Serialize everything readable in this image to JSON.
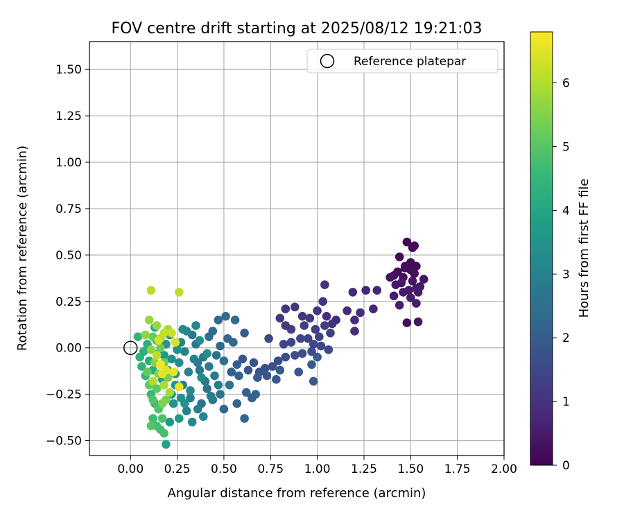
{
  "chart_data": {
    "type": "scatter",
    "title": "FOV centre drift starting at 2025/08/12 19:21:03",
    "xlabel": "Angular distance from reference (arcmin)",
    "ylabel": "Rotation from reference (arcmin)",
    "xlim": [
      -0.22,
      2.0
    ],
    "ylim": [
      -0.58,
      1.65
    ],
    "xticks": [
      0.0,
      0.25,
      0.5,
      0.75,
      1.0,
      1.25,
      1.5,
      1.75,
      2.0
    ],
    "xtick_labels": [
      "0.00",
      "0.25",
      "0.50",
      "0.75",
      "1.00",
      "1.25",
      "1.50",
      "1.75",
      "2.00"
    ],
    "yticks": [
      -0.5,
      -0.25,
      0.0,
      0.25,
      0.5,
      0.75,
      1.0,
      1.25,
      1.5
    ],
    "ytick_labels": [
      "−0.50",
      "−0.25",
      "0.00",
      "0.25",
      "0.50",
      "0.75",
      "1.00",
      "1.25",
      "1.50"
    ],
    "grid": true,
    "legend": {
      "placement": "top-right",
      "entries": [
        {
          "label": "Reference platepar",
          "marker": "open-circle",
          "x": 0.0,
          "y": 0.0
        }
      ]
    },
    "colorbar": {
      "label": "Hours from first FF file",
      "colormap": "viridis",
      "range": [
        0,
        6.8
      ],
      "ticks": [
        0,
        1,
        2,
        3,
        4,
        5,
        6
      ],
      "tick_labels": [
        "0",
        "1",
        "2",
        "3",
        "4",
        "5",
        "6"
      ],
      "colormap_stops": [
        "#440154",
        "#482878",
        "#3e4989",
        "#31688e",
        "#26828e",
        "#1f9e89",
        "#35b779",
        "#6ece58",
        "#b5de2b",
        "#fde725"
      ]
    },
    "points_cmap_value": "hours",
    "points": [
      {
        "x": 1.48,
        "y": 0.57,
        "h": 0.05
      },
      {
        "x": 1.51,
        "y": 0.54,
        "h": 0.08
      },
      {
        "x": 1.52,
        "y": 0.55,
        "h": 0.1
      },
      {
        "x": 1.44,
        "y": 0.49,
        "h": 0.12
      },
      {
        "x": 1.5,
        "y": 0.46,
        "h": 0.15
      },
      {
        "x": 1.53,
        "y": 0.44,
        "h": 0.18
      },
      {
        "x": 1.47,
        "y": 0.43,
        "h": 0.2
      },
      {
        "x": 1.43,
        "y": 0.41,
        "h": 0.22
      },
      {
        "x": 1.41,
        "y": 0.39,
        "h": 0.25
      },
      {
        "x": 1.52,
        "y": 0.4,
        "h": 0.27
      },
      {
        "x": 1.46,
        "y": 0.38,
        "h": 0.3
      },
      {
        "x": 1.39,
        "y": 0.38,
        "h": 0.33
      },
      {
        "x": 1.51,
        "y": 0.36,
        "h": 0.35
      },
      {
        "x": 1.57,
        "y": 0.37,
        "h": 0.37
      },
      {
        "x": 1.45,
        "y": 0.35,
        "h": 0.4
      },
      {
        "x": 1.42,
        "y": 0.34,
        "h": 0.42
      },
      {
        "x": 1.53,
        "y": 0.32,
        "h": 0.44
      },
      {
        "x": 1.49,
        "y": 0.31,
        "h": 0.46
      },
      {
        "x": 1.46,
        "y": 0.3,
        "h": 0.48
      },
      {
        "x": 1.54,
        "y": 0.3,
        "h": 0.5
      },
      {
        "x": 1.41,
        "y": 0.28,
        "h": 0.52
      },
      {
        "x": 1.5,
        "y": 0.27,
        "h": 0.54
      },
      {
        "x": 1.53,
        "y": 0.24,
        "h": 0.56
      },
      {
        "x": 1.44,
        "y": 0.23,
        "h": 0.58
      },
      {
        "x": 1.48,
        "y": 0.135,
        "h": 0.3
      },
      {
        "x": 1.54,
        "y": 0.14,
        "h": 0.35
      },
      {
        "x": 1.55,
        "y": 0.33,
        "h": 0.4
      },
      {
        "x": 1.47,
        "y": 0.44,
        "h": 0.25
      },
      {
        "x": 1.5,
        "y": 0.42,
        "h": 0.2
      },
      {
        "x": 1.32,
        "y": 0.31,
        "h": 0.7
      },
      {
        "x": 1.26,
        "y": 0.31,
        "h": 0.72
      },
      {
        "x": 1.19,
        "y": 0.3,
        "h": 0.75
      },
      {
        "x": 1.3,
        "y": 0.21,
        "h": 0.78
      },
      {
        "x": 1.23,
        "y": 0.19,
        "h": 0.8
      },
      {
        "x": 1.16,
        "y": 0.2,
        "h": 0.82
      },
      {
        "x": 1.2,
        "y": 0.15,
        "h": 0.85
      },
      {
        "x": 1.1,
        "y": 0.15,
        "h": 0.87
      },
      {
        "x": 1.05,
        "y": 0.17,
        "h": 0.9
      },
      {
        "x": 1.2,
        "y": 0.09,
        "h": 0.92
      },
      {
        "x": 1.08,
        "y": 0.13,
        "h": 0.95
      },
      {
        "x": 1.04,
        "y": 0.34,
        "h": 0.97
      },
      {
        "x": 1.03,
        "y": 0.25,
        "h": 1.0
      },
      {
        "x": 1.0,
        "y": 0.2,
        "h": 1.02
      },
      {
        "x": 0.96,
        "y": 0.16,
        "h": 1.05
      },
      {
        "x": 0.92,
        "y": 0.17,
        "h": 1.07
      },
      {
        "x": 0.88,
        "y": 0.22,
        "h": 1.1
      },
      {
        "x": 0.83,
        "y": 0.21,
        "h": 1.12
      },
      {
        "x": 0.8,
        "y": 0.16,
        "h": 1.15
      },
      {
        "x": 0.83,
        "y": 0.12,
        "h": 1.17
      },
      {
        "x": 0.86,
        "y": 0.1,
        "h": 1.2
      },
      {
        "x": 0.93,
        "y": 0.12,
        "h": 1.22
      },
      {
        "x": 0.99,
        "y": 0.1,
        "h": 1.25
      },
      {
        "x": 1.04,
        "y": 0.12,
        "h": 1.27
      },
      {
        "x": 1.07,
        "y": 0.08,
        "h": 1.3
      },
      {
        "x": 1.01,
        "y": 0.06,
        "h": 1.32
      },
      {
        "x": 0.95,
        "y": 0.05,
        "h": 1.35
      },
      {
        "x": 0.91,
        "y": 0.05,
        "h": 1.37
      },
      {
        "x": 0.86,
        "y": 0.03,
        "h": 1.4
      },
      {
        "x": 0.82,
        "y": 0.02,
        "h": 1.42
      },
      {
        "x": 0.74,
        "y": 0.05,
        "h": 1.45
      },
      {
        "x": 0.98,
        "y": 0.02,
        "h": 1.47
      },
      {
        "x": 1.02,
        "y": 0.01,
        "h": 1.5
      },
      {
        "x": 1.06,
        "y": -0.01,
        "h": 1.52
      },
      {
        "x": 0.97,
        "y": -0.02,
        "h": 1.55
      },
      {
        "x": 0.92,
        "y": -0.03,
        "h": 1.57
      },
      {
        "x": 0.88,
        "y": -0.04,
        "h": 1.6
      },
      {
        "x": 0.83,
        "y": -0.05,
        "h": 1.62
      },
      {
        "x": 0.79,
        "y": -0.07,
        "h": 1.65
      },
      {
        "x": 0.76,
        "y": -0.1,
        "h": 1.67
      },
      {
        "x": 0.72,
        "y": -0.11,
        "h": 1.7
      },
      {
        "x": 0.66,
        "y": -0.08,
        "h": 1.72
      },
      {
        "x": 0.69,
        "y": -0.13,
        "h": 1.75
      },
      {
        "x": 0.63,
        "y": -0.12,
        "h": 1.77
      },
      {
        "x": 0.6,
        "y": -0.06,
        "h": 1.8
      },
      {
        "x": 0.9,
        "y": -0.13,
        "h": 1.82
      },
      {
        "x": 0.8,
        "y": -0.12,
        "h": 1.85
      },
      {
        "x": 0.73,
        "y": -0.15,
        "h": 1.87
      },
      {
        "x": 0.78,
        "y": -0.17,
        "h": 1.9
      },
      {
        "x": 0.98,
        "y": -0.18,
        "h": 1.92
      },
      {
        "x": 0.68,
        "y": -0.16,
        "h": 1.95
      },
      {
        "x": 0.97,
        "y": -0.09,
        "h": 1.97
      },
      {
        "x": 1.0,
        "y": -0.05,
        "h": 2.0
      },
      {
        "x": 0.61,
        "y": 0.08,
        "h": 2.02
      },
      {
        "x": 0.57,
        "y": -0.09,
        "h": 2.05
      },
      {
        "x": 0.54,
        "y": -0.13,
        "h": 2.07
      },
      {
        "x": 0.58,
        "y": -0.15,
        "h": 2.1
      },
      {
        "x": 0.62,
        "y": -0.24,
        "h": 2.12
      },
      {
        "x": 0.65,
        "y": -0.27,
        "h": 2.15
      },
      {
        "x": 0.67,
        "y": -0.25,
        "h": 2.17
      },
      {
        "x": 0.57,
        "y": -0.3,
        "h": 2.2
      },
      {
        "x": 0.61,
        "y": -0.38,
        "h": 2.22
      },
      {
        "x": 0.5,
        "y": -0.33,
        "h": 2.25
      },
      {
        "x": 0.55,
        "y": 0.03,
        "h": 2.27
      },
      {
        "x": 0.52,
        "y": 0.05,
        "h": 2.3
      },
      {
        "x": 0.48,
        "y": 0.01,
        "h": 2.32
      },
      {
        "x": 0.47,
        "y": 0.15,
        "h": 2.35
      },
      {
        "x": 0.51,
        "y": 0.17,
        "h": 2.37
      },
      {
        "x": 0.56,
        "y": 0.15,
        "h": 2.4
      },
      {
        "x": 0.44,
        "y": 0.09,
        "h": 2.42
      },
      {
        "x": 0.42,
        "y": 0.06,
        "h": 2.45
      },
      {
        "x": 0.46,
        "y": -0.04,
        "h": 2.47
      },
      {
        "x": 0.5,
        "y": -0.07,
        "h": 2.5
      },
      {
        "x": 0.53,
        "y": -0.2,
        "h": 2.52
      },
      {
        "x": 0.48,
        "y": -0.25,
        "h": 2.55
      },
      {
        "x": 0.44,
        "y": -0.28,
        "h": 2.57
      },
      {
        "x": 0.41,
        "y": -0.22,
        "h": 2.6
      },
      {
        "x": 0.38,
        "y": -0.3,
        "h": 2.62
      },
      {
        "x": 0.4,
        "y": -0.18,
        "h": 2.65
      },
      {
        "x": 0.37,
        "y": -0.12,
        "h": 2.67
      },
      {
        "x": 0.39,
        "y": -0.05,
        "h": 2.7
      },
      {
        "x": 0.35,
        "y": 0.02,
        "h": 2.72
      },
      {
        "x": 0.33,
        "y": 0.07,
        "h": 2.75
      },
      {
        "x": 0.36,
        "y": -0.08,
        "h": 2.77
      },
      {
        "x": 0.42,
        "y": -0.1,
        "h": 2.8
      },
      {
        "x": 0.45,
        "y": -0.15,
        "h": 2.82
      },
      {
        "x": 0.47,
        "y": -0.2,
        "h": 2.85
      },
      {
        "x": 0.43,
        "y": -0.26,
        "h": 2.87
      },
      {
        "x": 0.36,
        "y": -0.33,
        "h": 2.9
      },
      {
        "x": 0.32,
        "y": -0.27,
        "h": 2.92
      },
      {
        "x": 0.3,
        "y": -0.34,
        "h": 2.95
      },
      {
        "x": 0.28,
        "y": -0.2,
        "h": 2.97
      },
      {
        "x": 0.31,
        "y": -0.13,
        "h": 3.0
      },
      {
        "x": 0.34,
        "y": -0.06,
        "h": 3.02
      },
      {
        "x": 0.29,
        "y": -0.02,
        "h": 3.05
      },
      {
        "x": 0.27,
        "y": 0.03,
        "h": 3.07
      },
      {
        "x": 0.3,
        "y": 0.09,
        "h": 3.1
      },
      {
        "x": 0.35,
        "y": 0.12,
        "h": 3.12
      },
      {
        "x": 0.39,
        "y": -0.37,
        "h": 3.15
      },
      {
        "x": 0.33,
        "y": -0.4,
        "h": 3.17
      },
      {
        "x": 0.26,
        "y": -0.08,
        "h": 3.2
      },
      {
        "x": 0.24,
        "y": -0.14,
        "h": 3.22
      },
      {
        "x": 0.28,
        "y": 0.1,
        "h": 3.25
      },
      {
        "x": 0.32,
        "y": -0.23,
        "h": 3.27
      },
      {
        "x": 0.38,
        "y": -0.16,
        "h": 3.3
      },
      {
        "x": 0.41,
        "y": -0.03,
        "h": 3.32
      },
      {
        "x": 0.37,
        "y": 0.04,
        "h": 3.35
      },
      {
        "x": 0.25,
        "y": -0.01,
        "h": 3.37
      },
      {
        "x": 0.22,
        "y": -0.06,
        "h": 3.4
      },
      {
        "x": 0.24,
        "y": -0.2,
        "h": 3.42
      },
      {
        "x": 0.27,
        "y": -0.27,
        "h": 3.45
      },
      {
        "x": 0.29,
        "y": -0.3,
        "h": 3.47
      },
      {
        "x": 0.23,
        "y": -0.3,
        "h": 3.5
      },
      {
        "x": 0.2,
        "y": -0.12,
        "h": 3.52
      },
      {
        "x": 0.21,
        "y": 0.07,
        "h": 3.55
      },
      {
        "x": 0.19,
        "y": 0.02,
        "h": 3.57
      },
      {
        "x": 0.18,
        "y": -0.04,
        "h": 3.6
      },
      {
        "x": 0.26,
        "y": -0.38,
        "h": 3.62
      },
      {
        "x": 0.21,
        "y": -0.4,
        "h": 3.65
      },
      {
        "x": 0.22,
        "y": -0.25,
        "h": 3.67
      },
      {
        "x": 0.17,
        "y": -0.17,
        "h": 3.7
      },
      {
        "x": 0.16,
        "y": -0.09,
        "h": 3.72
      },
      {
        "x": 0.19,
        "y": -0.52,
        "h": 3.9
      },
      {
        "x": 0.15,
        "y": -0.03,
        "h": 3.95
      },
      {
        "x": 0.14,
        "y": 0.04,
        "h": 4.0
      },
      {
        "x": 0.13,
        "y": 0.11,
        "h": 4.05
      },
      {
        "x": 0.12,
        "y": -0.12,
        "h": 4.1
      },
      {
        "x": 0.11,
        "y": -0.19,
        "h": 4.15
      },
      {
        "x": 0.1,
        "y": -0.07,
        "h": 4.2
      },
      {
        "x": 0.09,
        "y": 0.02,
        "h": 4.25
      },
      {
        "x": 0.07,
        "y": -0.02,
        "h": 4.3
      },
      {
        "x": 0.05,
        "y": -0.05,
        "h": 4.35
      },
      {
        "x": 0.04,
        "y": 0.06,
        "h": 4.4
      },
      {
        "x": 0.06,
        "y": -0.1,
        "h": 4.45
      },
      {
        "x": 0.08,
        "y": -0.15,
        "h": 4.5
      },
      {
        "x": 0.11,
        "y": -0.25,
        "h": 4.55
      },
      {
        "x": 0.13,
        "y": -0.3,
        "h": 4.6
      },
      {
        "x": 0.12,
        "y": -0.38,
        "h": 4.65
      },
      {
        "x": 0.14,
        "y": -0.42,
        "h": 4.7
      },
      {
        "x": 0.16,
        "y": -0.44,
        "h": 4.75
      },
      {
        "x": 0.18,
        "y": -0.46,
        "h": 4.8
      },
      {
        "x": 0.17,
        "y": -0.38,
        "h": 4.85
      },
      {
        "x": 0.15,
        "y": -0.33,
        "h": 4.9
      },
      {
        "x": 0.12,
        "y": -0.28,
        "h": 4.95
      },
      {
        "x": 0.11,
        "y": -0.42,
        "h": 5.0
      },
      {
        "x": 0.14,
        "y": -0.22,
        "h": 5.05
      },
      {
        "x": 0.1,
        "y": -0.2,
        "h": 5.1
      },
      {
        "x": 0.09,
        "y": -0.13,
        "h": 5.15
      },
      {
        "x": 0.12,
        "y": 0.06,
        "h": 5.2
      },
      {
        "x": 0.16,
        "y": 0.0,
        "h": 5.25
      },
      {
        "x": 0.18,
        "y": -0.08,
        "h": 5.3
      },
      {
        "x": 0.2,
        "y": -0.16,
        "h": 5.35
      },
      {
        "x": 0.19,
        "y": -0.28,
        "h": 5.4
      },
      {
        "x": 0.17,
        "y": -0.3,
        "h": 5.45
      },
      {
        "x": 0.15,
        "y": -0.14,
        "h": 5.5
      },
      {
        "x": 0.13,
        "y": -0.08,
        "h": 5.55
      },
      {
        "x": 0.11,
        "y": -0.01,
        "h": 5.6
      },
      {
        "x": 0.08,
        "y": 0.07,
        "h": 5.65
      },
      {
        "x": 0.1,
        "y": 0.15,
        "h": 5.7
      },
      {
        "x": 0.14,
        "y": 0.12,
        "h": 5.75
      },
      {
        "x": 0.16,
        "y": 0.05,
        "h": 5.8
      },
      {
        "x": 0.2,
        "y": 0.1,
        "h": 5.85
      },
      {
        "x": 0.21,
        "y": -0.24,
        "h": 5.9
      },
      {
        "x": 0.18,
        "y": -0.2,
        "h": 5.95
      },
      {
        "x": 0.12,
        "y": -0.18,
        "h": 6.0
      },
      {
        "x": 0.11,
        "y": 0.31,
        "h": 6.05
      },
      {
        "x": 0.26,
        "y": 0.3,
        "h": 6.1
      },
      {
        "x": 0.14,
        "y": -0.04,
        "h": 6.15
      },
      {
        "x": 0.18,
        "y": 0.08,
        "h": 6.2
      },
      {
        "x": 0.22,
        "y": 0.08,
        "h": 6.25
      },
      {
        "x": 0.16,
        "y": -0.09,
        "h": 6.3
      },
      {
        "x": 0.15,
        "y": 0.04,
        "h": 6.35
      },
      {
        "x": 0.24,
        "y": 0.03,
        "h": 6.4
      },
      {
        "x": 0.19,
        "y": -0.12,
        "h": 6.45
      },
      {
        "x": 0.17,
        "y": -0.14,
        "h": 6.5
      },
      {
        "x": 0.23,
        "y": -0.13,
        "h": 6.55
      },
      {
        "x": 0.26,
        "y": -0.21,
        "h": 6.6
      },
      {
        "x": 0.16,
        "y": -0.09,
        "h": 6.7
      }
    ]
  }
}
